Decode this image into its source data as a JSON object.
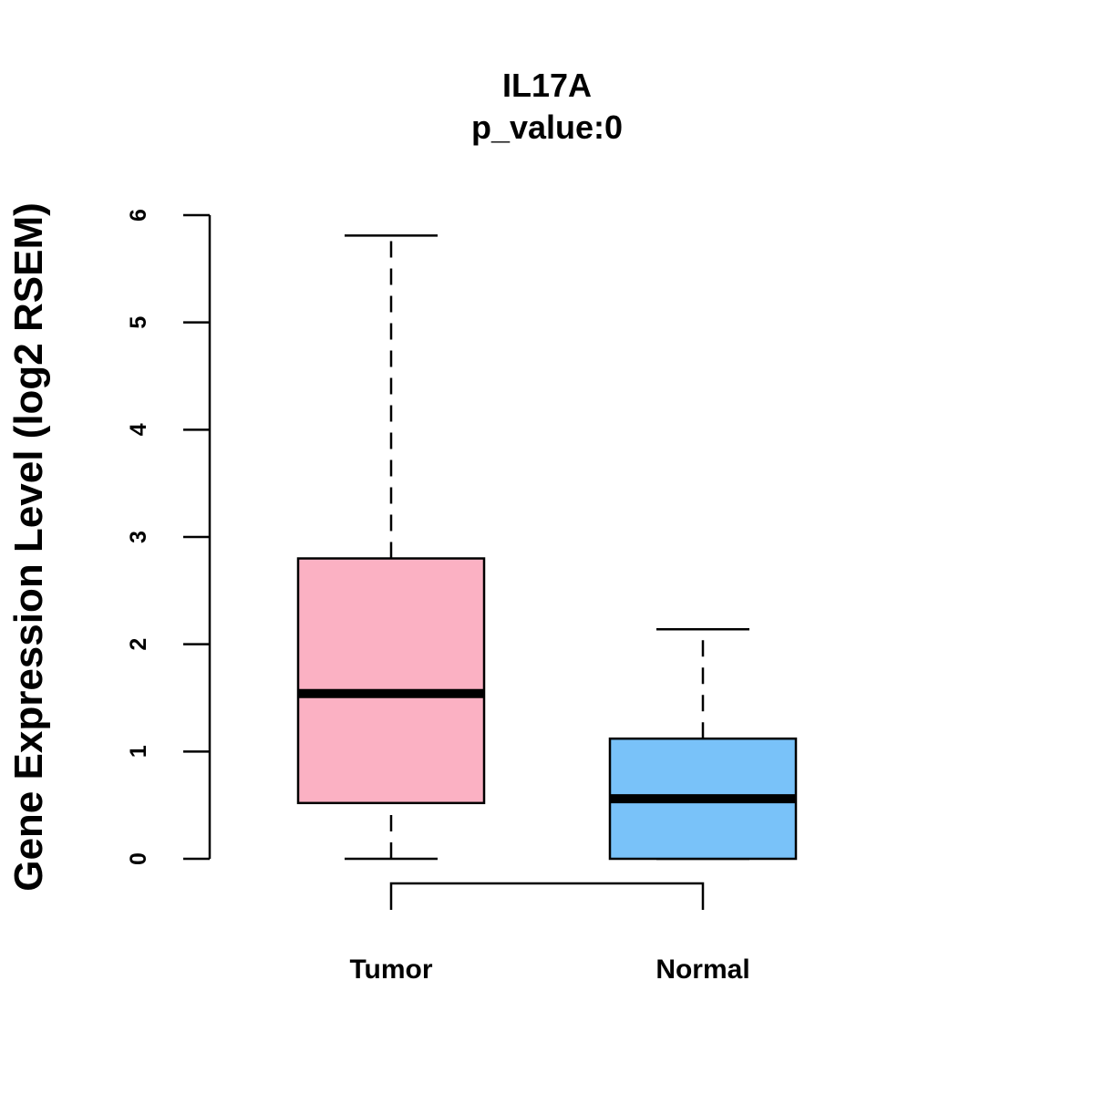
{
  "chart_data": {
    "type": "boxplot",
    "title": "IL17A",
    "subtitle": "p_value:0",
    "xlabel": "",
    "ylabel": "Gene Expression Level (log2 RSEM)",
    "ylim": [
      0,
      6
    ],
    "yticks": [
      0,
      1,
      2,
      3,
      4,
      5,
      6
    ],
    "categories": [
      "Tumor",
      "Normal"
    ],
    "series": [
      {
        "name": "Tumor",
        "min": 0.0,
        "q1": 0.52,
        "median": 1.54,
        "q3": 2.8,
        "max": 5.81,
        "color": "#FBB1C3"
      },
      {
        "name": "Normal",
        "min": 0.0,
        "q1": 0.0,
        "median": 0.56,
        "q3": 1.12,
        "max": 2.14,
        "color": "#79C2F9"
      }
    ],
    "comparison_bracket": [
      "Tumor",
      "Normal"
    ],
    "grid": false
  }
}
